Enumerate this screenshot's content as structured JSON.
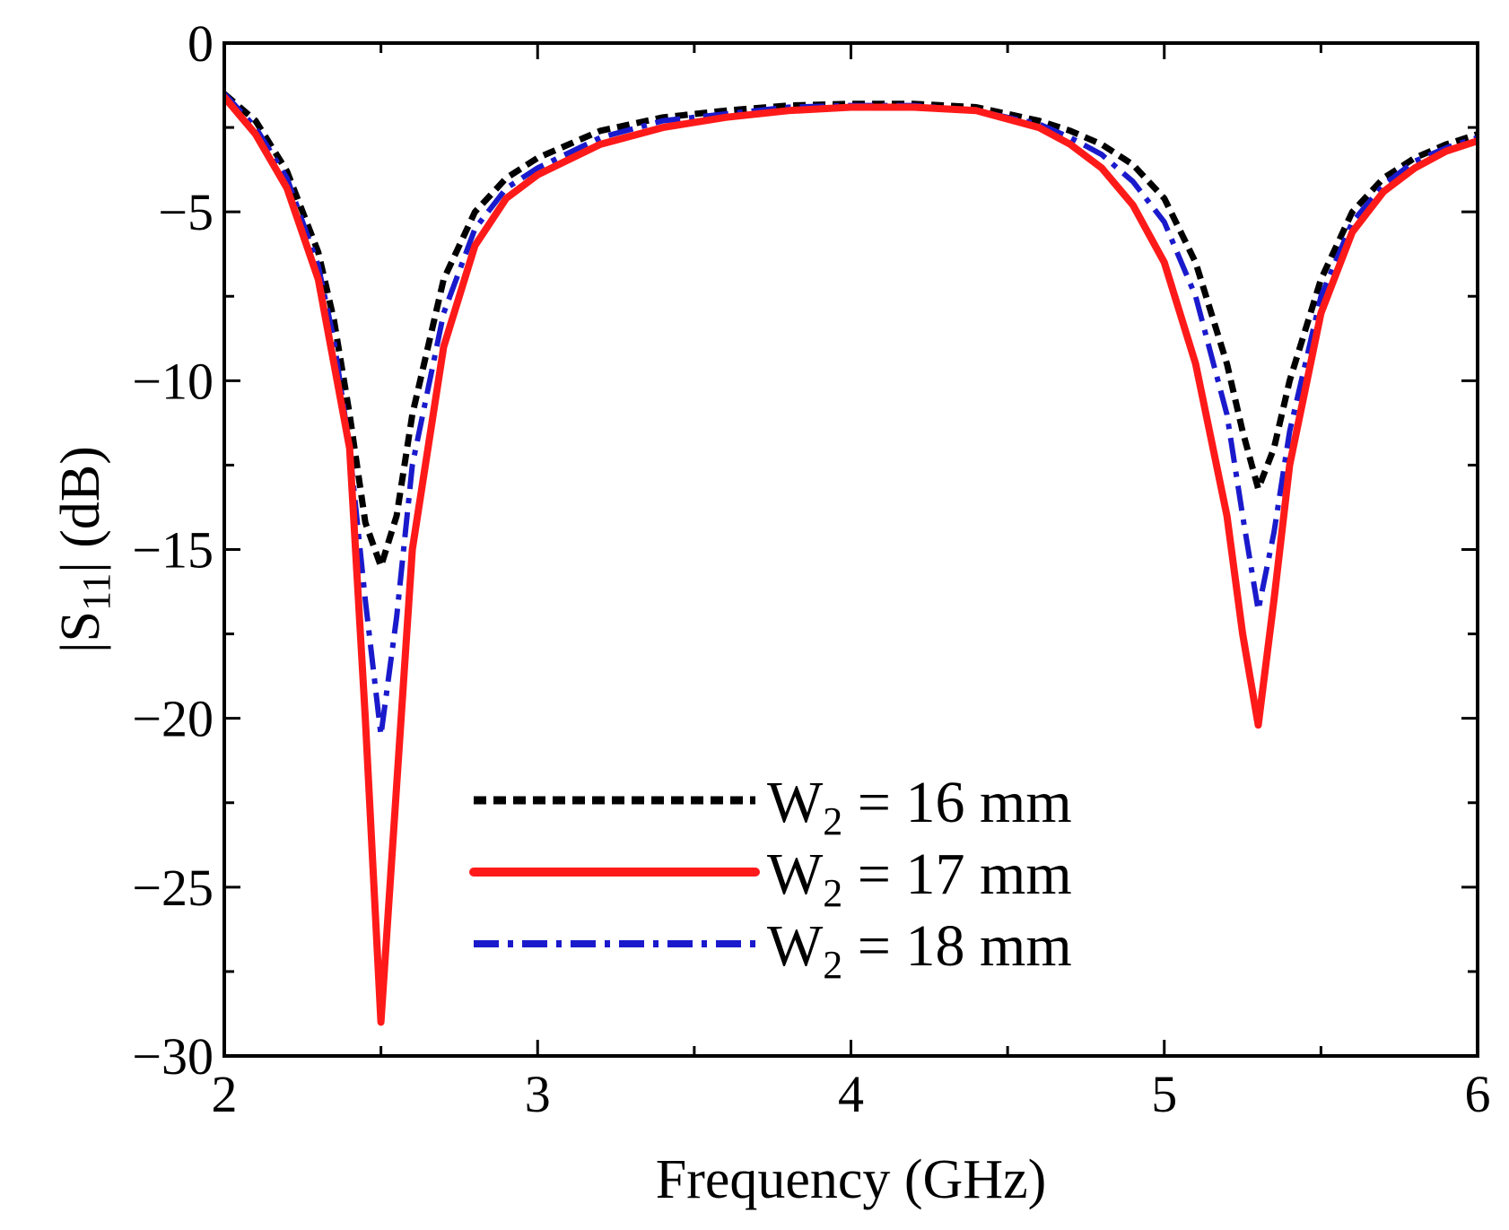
{
  "chart_data": {
    "type": "line",
    "title": "",
    "xlabel": "Frequency (GHz)",
    "ylabel_main": "|S",
    "ylabel_sub": "11",
    "ylabel_tail": "| (dB)",
    "xlim": [
      2,
      6
    ],
    "ylim": [
      -30,
      0
    ],
    "xticks": [
      2,
      3,
      4,
      5,
      6
    ],
    "xtick_labels": [
      "2",
      "3",
      "4",
      "5",
      "6"
    ],
    "xminor": [
      2.5,
      3.5,
      4.5,
      5.5
    ],
    "yticks": [
      0,
      -5,
      -10,
      -15,
      -20,
      -25,
      -30
    ],
    "ytick_labels": [
      "0",
      "−5",
      "−10",
      "−15",
      "−20",
      "−25",
      "−30"
    ],
    "yminor": [
      -2.5,
      -7.5,
      -12.5,
      -17.5,
      -22.5,
      -27.5
    ],
    "grid": false,
    "legend_position": "bottom-center",
    "series": [
      {
        "name": "W2 = 16 mm",
        "label_main": "W",
        "label_sub": "2",
        "label_tail": " = 16 mm",
        "color": "#000000",
        "style": "dotted",
        "x": [
          2.0,
          2.1,
          2.2,
          2.3,
          2.35,
          2.4,
          2.45,
          2.5,
          2.55,
          2.6,
          2.7,
          2.8,
          2.9,
          3.0,
          3.2,
          3.4,
          3.6,
          3.8,
          4.0,
          4.2,
          4.4,
          4.6,
          4.7,
          4.8,
          4.9,
          5.0,
          5.1,
          5.2,
          5.25,
          5.3,
          5.35,
          5.4,
          5.5,
          5.6,
          5.7,
          5.8,
          5.9,
          6.0
        ],
        "y": [
          -1.5,
          -2.3,
          -3.8,
          -6.2,
          -8.2,
          -11.0,
          -14.2,
          -15.5,
          -14.0,
          -11.0,
          -7.0,
          -5.0,
          -4.0,
          -3.4,
          -2.6,
          -2.2,
          -2.0,
          -1.85,
          -1.8,
          -1.8,
          -1.9,
          -2.3,
          -2.6,
          -3.0,
          -3.6,
          -4.6,
          -6.5,
          -9.5,
          -11.5,
          -13.2,
          -12.0,
          -10.0,
          -7.0,
          -5.0,
          -4.0,
          -3.4,
          -3.0,
          -2.7
        ]
      },
      {
        "name": "W2 = 17 mm",
        "label_main": "W",
        "label_sub": "2",
        "label_tail": " = 17 mm",
        "color": "#ff1a1a",
        "style": "solid",
        "x": [
          2.0,
          2.1,
          2.2,
          2.3,
          2.4,
          2.45,
          2.5,
          2.55,
          2.6,
          2.7,
          2.8,
          2.9,
          3.0,
          3.2,
          3.4,
          3.6,
          3.8,
          4.0,
          4.2,
          4.4,
          4.6,
          4.7,
          4.8,
          4.9,
          5.0,
          5.1,
          5.2,
          5.25,
          5.3,
          5.35,
          5.4,
          5.5,
          5.6,
          5.7,
          5.8,
          5.9,
          6.0
        ],
        "y": [
          -1.6,
          -2.7,
          -4.3,
          -7.0,
          -12.0,
          -20.0,
          -29.0,
          -22.0,
          -15.0,
          -9.0,
          -6.0,
          -4.6,
          -3.9,
          -3.0,
          -2.5,
          -2.2,
          -2.0,
          -1.9,
          -1.9,
          -2.0,
          -2.5,
          -3.0,
          -3.7,
          -4.8,
          -6.5,
          -9.5,
          -14.0,
          -17.5,
          -20.2,
          -16.5,
          -12.5,
          -8.0,
          -5.6,
          -4.4,
          -3.7,
          -3.2,
          -2.9
        ]
      },
      {
        "name": "W2 = 18 mm",
        "label_main": "W",
        "label_sub": "2",
        "label_tail": " = 18 mm",
        "color": "#1a1acc",
        "style": "dashdot",
        "x": [
          2.0,
          2.1,
          2.2,
          2.3,
          2.35,
          2.4,
          2.45,
          2.5,
          2.55,
          2.6,
          2.7,
          2.8,
          2.9,
          3.0,
          3.2,
          3.4,
          3.6,
          3.8,
          4.0,
          4.2,
          4.4,
          4.6,
          4.7,
          4.8,
          4.9,
          5.0,
          5.1,
          5.2,
          5.25,
          5.3,
          5.35,
          5.4,
          5.5,
          5.6,
          5.7,
          5.8,
          5.9,
          6.0
        ],
        "y": [
          -1.5,
          -2.5,
          -4.0,
          -6.6,
          -8.8,
          -12.0,
          -16.5,
          -20.5,
          -17.0,
          -12.5,
          -8.0,
          -5.5,
          -4.3,
          -3.7,
          -2.8,
          -2.3,
          -2.1,
          -1.9,
          -1.85,
          -1.85,
          -2.0,
          -2.4,
          -2.8,
          -3.3,
          -4.1,
          -5.3,
          -7.5,
          -11.0,
          -14.0,
          -16.8,
          -14.5,
          -11.5,
          -7.5,
          -5.3,
          -4.2,
          -3.5,
          -3.1,
          -2.8
        ]
      }
    ]
  }
}
